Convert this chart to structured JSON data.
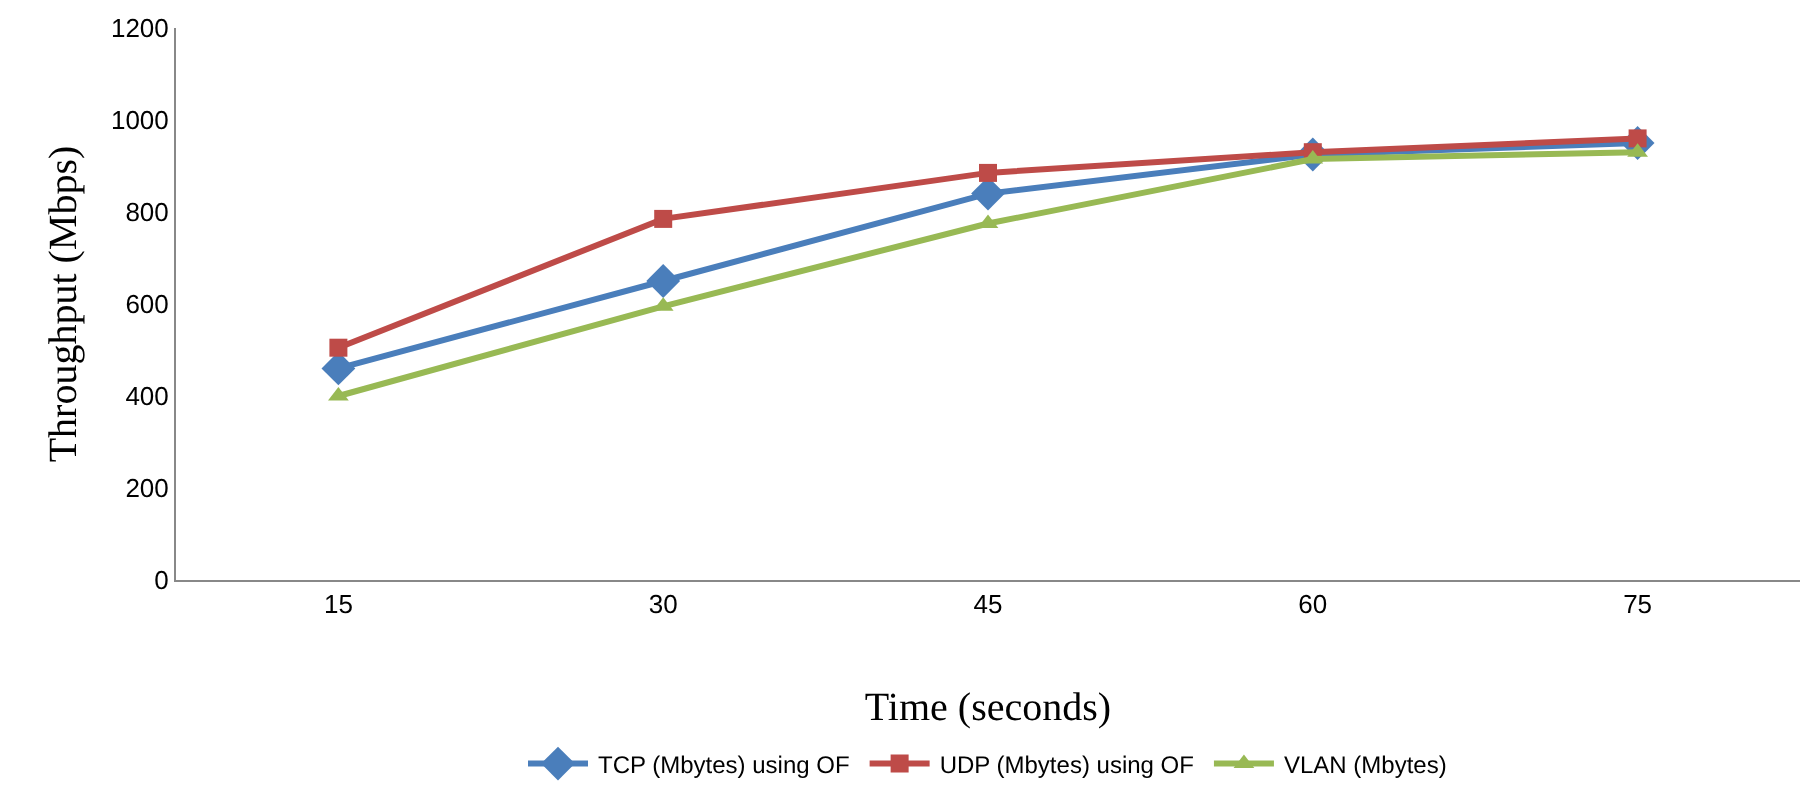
{
  "chart_data": {
    "type": "line",
    "xlabel": "Time (seconds)",
    "ylabel": "Throughput (Mbps)",
    "categories": [
      "15",
      "30",
      "45",
      "60",
      "75"
    ],
    "ylim": [
      0,
      1200
    ],
    "yticks": [
      0,
      200,
      400,
      600,
      800,
      1000,
      1200
    ],
    "grid": false,
    "legend": "bottom",
    "line_style": "solid",
    "series": [
      {
        "name": "TCP (Mbytes) using OF",
        "color": "#4a7ebb",
        "marker": "diamond",
        "values": [
          460,
          650,
          840,
          925,
          950
        ]
      },
      {
        "name": "UDP (Mbytes) using OF",
        "color": "#be4b48",
        "marker": "square",
        "values": [
          505,
          785,
          885,
          930,
          960
        ]
      },
      {
        "name": "VLAN (Mbytes)",
        "color": "#98b954",
        "marker": "triangle",
        "values": [
          400,
          595,
          775,
          915,
          930
        ]
      }
    ]
  }
}
